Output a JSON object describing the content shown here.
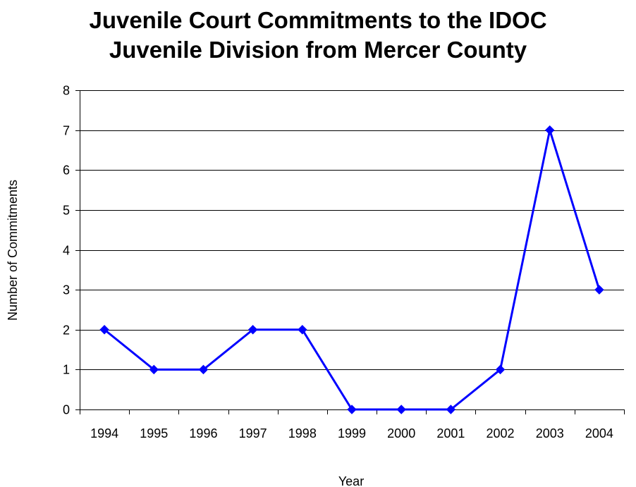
{
  "chart_data": {
    "type": "line",
    "title_lines": [
      "Juvenile Court Commitments to the IDOC",
      "Juvenile Division from Mercer County"
    ],
    "xlabel": "Year",
    "ylabel": "Number of Commitments",
    "categories": [
      "1994",
      "1995",
      "1996",
      "1997",
      "1998",
      "1999",
      "2000",
      "2001",
      "2002",
      "2003",
      "2004"
    ],
    "series": [
      {
        "values": [
          2,
          1,
          1,
          2,
          2,
          0,
          0,
          0,
          1,
          7,
          3
        ]
      }
    ],
    "ylim": [
      0,
      8
    ],
    "yticks": [
      0,
      1,
      2,
      3,
      4,
      5,
      6,
      7,
      8
    ],
    "grid": true,
    "legend": "none",
    "line_color": "#0000ff",
    "marker": "diamond"
  }
}
